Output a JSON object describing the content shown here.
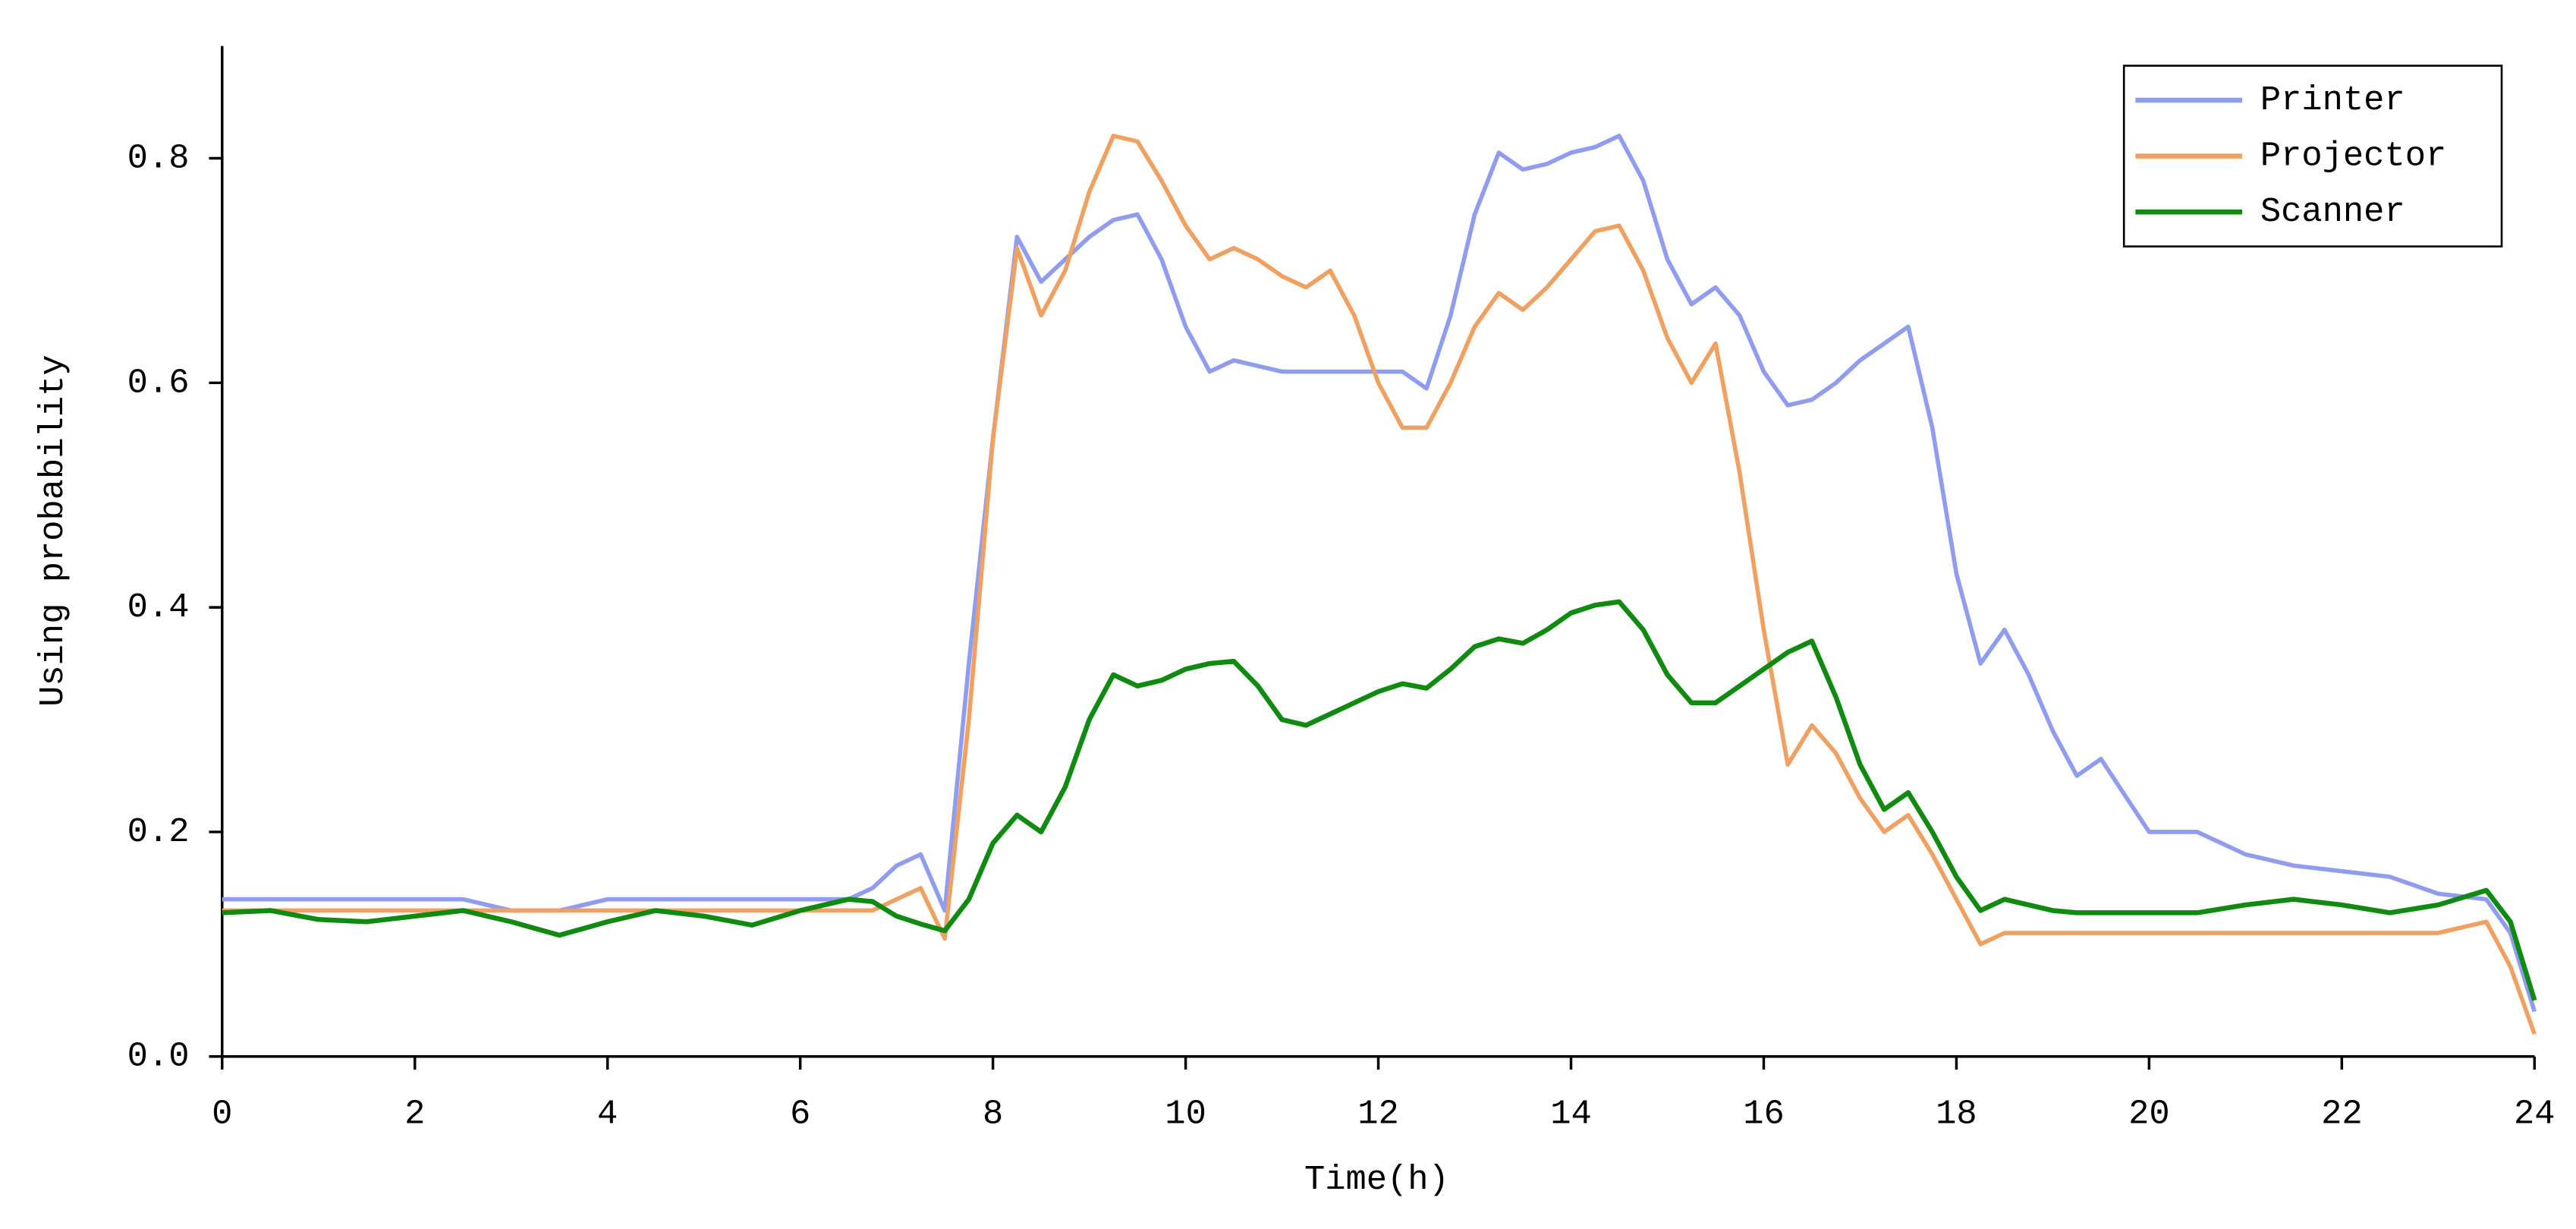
{
  "chart_data": {
    "type": "line",
    "x_label": "Time(h)",
    "y_label": "Using probability",
    "x": [
      0,
      0.5,
      1,
      1.5,
      2,
      2.5,
      3,
      3.5,
      4,
      4.5,
      5,
      5.5,
      6,
      6.5,
      6.75,
      7,
      7.25,
      7.5,
      7.75,
      8,
      8.25,
      8.5,
      8.75,
      9,
      9.25,
      9.5,
      9.75,
      10,
      10.25,
      10.5,
      10.75,
      11,
      11.25,
      11.5,
      11.75,
      12,
      12.25,
      12.5,
      12.75,
      13,
      13.25,
      13.5,
      13.75,
      14,
      14.25,
      14.5,
      14.75,
      15,
      15.25,
      15.5,
      15.75,
      16,
      16.25,
      16.5,
      16.75,
      17,
      17.25,
      17.5,
      17.75,
      18,
      18.25,
      18.5,
      18.75,
      19,
      19.25,
      19.5,
      20,
      20.5,
      21,
      21.5,
      22,
      22.5,
      23,
      23.5,
      23.75,
      24
    ],
    "series": [
      {
        "name": "Printer",
        "color": "#8f9cf0",
        "values": [
          0.14,
          0.14,
          0.14,
          0.14,
          0.14,
          0.14,
          0.13,
          0.13,
          0.14,
          0.14,
          0.14,
          0.14,
          0.14,
          0.14,
          0.15,
          0.17,
          0.18,
          0.13,
          0.35,
          0.55,
          0.73,
          0.69,
          0.71,
          0.73,
          0.745,
          0.75,
          0.71,
          0.65,
          0.61,
          0.62,
          0.615,
          0.61,
          0.61,
          0.61,
          0.61,
          0.61,
          0.61,
          0.595,
          0.66,
          0.75,
          0.805,
          0.79,
          0.795,
          0.805,
          0.81,
          0.82,
          0.78,
          0.71,
          0.67,
          0.685,
          0.66,
          0.61,
          0.58,
          0.585,
          0.6,
          0.62,
          0.635,
          0.65,
          0.56,
          0.43,
          0.35,
          0.38,
          0.34,
          0.29,
          0.25,
          0.265,
          0.2,
          0.2,
          0.18,
          0.17,
          0.165,
          0.16,
          0.145,
          0.14,
          0.11,
          0.04
        ]
      },
      {
        "name": "Projector",
        "color": "#f0a060",
        "values": [
          0.13,
          0.13,
          0.13,
          0.13,
          0.13,
          0.13,
          0.13,
          0.13,
          0.13,
          0.13,
          0.13,
          0.13,
          0.13,
          0.13,
          0.13,
          0.14,
          0.15,
          0.105,
          0.3,
          0.55,
          0.72,
          0.66,
          0.7,
          0.77,
          0.82,
          0.815,
          0.78,
          0.74,
          0.71,
          0.72,
          0.71,
          0.695,
          0.685,
          0.7,
          0.66,
          0.6,
          0.56,
          0.56,
          0.6,
          0.65,
          0.68,
          0.665,
          0.685,
          0.71,
          0.735,
          0.74,
          0.7,
          0.64,
          0.6,
          0.635,
          0.52,
          0.38,
          0.26,
          0.295,
          0.27,
          0.23,
          0.2,
          0.215,
          0.18,
          0.14,
          0.1,
          0.11,
          0.11,
          0.11,
          0.11,
          0.11,
          0.11,
          0.11,
          0.11,
          0.11,
          0.11,
          0.11,
          0.11,
          0.12,
          0.08,
          0.02
        ]
      },
      {
        "name": "Scanner",
        "color": "#108a10",
        "values": [
          0.128,
          0.13,
          0.122,
          0.12,
          0.125,
          0.13,
          0.12,
          0.108,
          0.12,
          0.13,
          0.125,
          0.117,
          0.13,
          0.14,
          0.138,
          0.125,
          0.118,
          0.112,
          0.14,
          0.19,
          0.215,
          0.2,
          0.24,
          0.3,
          0.34,
          0.33,
          0.335,
          0.345,
          0.35,
          0.352,
          0.33,
          0.3,
          0.295,
          0.305,
          0.315,
          0.325,
          0.332,
          0.328,
          0.345,
          0.365,
          0.372,
          0.368,
          0.38,
          0.395,
          0.402,
          0.405,
          0.38,
          0.34,
          0.315,
          0.315,
          0.33,
          0.345,
          0.36,
          0.37,
          0.32,
          0.26,
          0.22,
          0.235,
          0.2,
          0.16,
          0.13,
          0.14,
          0.135,
          0.13,
          0.128,
          0.128,
          0.128,
          0.128,
          0.135,
          0.14,
          0.135,
          0.128,
          0.135,
          0.148,
          0.12,
          0.05
        ]
      }
    ],
    "xlim": [
      0,
      24
    ],
    "xticks": [
      0,
      2,
      4,
      6,
      8,
      10,
      12,
      14,
      16,
      18,
      20,
      22,
      24
    ],
    "ylim": [
      0,
      0.9
    ],
    "yticks": [
      {
        "value": 0,
        "label": "0.0"
      },
      0.2,
      0.4,
      0.6,
      0.8
    ],
    "grid": false,
    "legend": "upper right"
  }
}
